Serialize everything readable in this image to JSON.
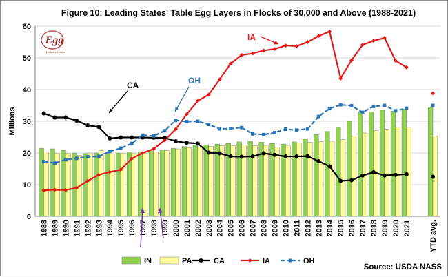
{
  "chart_data": {
    "type": "bar",
    "title": "Figure 10:  Leading States' Table Egg Layers in Flocks of 30,000 and Above (1988-2021)",
    "ylabel": "Millions",
    "xlabel": "",
    "ylim": [
      0,
      60
    ],
    "yticks": [
      0,
      10,
      20,
      30,
      40,
      50,
      60
    ],
    "grid": true,
    "legend_position": "bottom",
    "source": "Source:  USDA NASS",
    "logo_text": "Egg Industry Center",
    "categories": [
      "1988",
      "1989",
      "1990",
      "1991",
      "1992",
      "1993",
      "1994",
      "1995",
      "1996",
      "1997",
      "1998",
      "1999",
      "2000",
      "2001",
      "2002",
      "2003",
      "2004",
      "2005",
      "2006",
      "2007",
      "2008",
      "2009",
      "2010",
      "2011",
      "2012",
      "2013",
      "2014",
      "2015",
      "2016",
      "2017",
      "2018",
      "2019",
      "2020",
      "2021",
      "YTD avg."
    ],
    "series": [
      {
        "name": "IN",
        "kind": "bar",
        "color": "#92d050",
        "values": [
          21.5,
          21.3,
          20.8,
          20.0,
          19.8,
          20.0,
          20.0,
          20.0,
          20.3,
          20.4,
          20.7,
          21.0,
          21.5,
          22.0,
          22.4,
          22.6,
          22.8,
          23.0,
          23.5,
          23.8,
          23.4,
          23.0,
          22.8,
          23.5,
          24.5,
          25.8,
          26.8,
          28.2,
          30.0,
          32.7,
          33.0,
          33.5,
          33.2,
          33.8,
          34.5
        ]
      },
      {
        "name": "PA",
        "kind": "bar",
        "color": "#ffff99",
        "values": [
          20.3,
          19.8,
          19.8,
          19.3,
          20.0,
          20.8,
          19.7,
          19.8,
          19.8,
          20.0,
          20.3,
          20.7,
          21.3,
          21.7,
          21.9,
          22.1,
          22.3,
          22.3,
          22.5,
          22.3,
          22.4,
          21.8,
          22.4,
          23.2,
          23.4,
          23.6,
          23.7,
          24.2,
          25.4,
          26.3,
          27.0,
          27.5,
          28.1,
          28.1,
          25.3
        ]
      },
      {
        "name": "CA",
        "kind": "line",
        "color": "#000000",
        "values": [
          32.5,
          31.2,
          31.2,
          30.2,
          28.7,
          28.2,
          24.6,
          24.9,
          24.9,
          24.9,
          24.8,
          24.8,
          23.7,
          23.2,
          23.0,
          20.1,
          19.9,
          18.9,
          18.8,
          18.9,
          19.9,
          19.4,
          18.9,
          18.9,
          19.0,
          17.4,
          15.8,
          11.2,
          11.4,
          12.9,
          13.9,
          12.9,
          13.1,
          13.3,
          12.5
        ]
      },
      {
        "name": "IA",
        "kind": "line",
        "color": "#e31a1c",
        "values": [
          8.2,
          8.4,
          8.3,
          9.0,
          11.2,
          13.1,
          14.0,
          14.7,
          18.2,
          20.0,
          21.3,
          24.0,
          27.5,
          32.2,
          36.4,
          38.4,
          43.2,
          48.2,
          50.9,
          51.4,
          52.3,
          52.8,
          53.9,
          53.7,
          55.0,
          56.9,
          58.3,
          43.5,
          49.3,
          54.1,
          55.4,
          56.3,
          49.1,
          47.0,
          38.8
        ]
      },
      {
        "name": "OH",
        "kind": "line",
        "color": "#2e75b6",
        "values": [
          17.3,
          16.8,
          17.9,
          18.3,
          18.8,
          18.9,
          20.5,
          21.5,
          23.0,
          25.6,
          25.4,
          27.0,
          30.3,
          29.9,
          30.0,
          29.0,
          27.6,
          27.7,
          28.0,
          26.0,
          25.8,
          26.4,
          27.5,
          27.2,
          27.6,
          31.5,
          34.0,
          35.2,
          34.9,
          32.8,
          34.7,
          35.0,
          33.3,
          34.1,
          35.0
        ]
      }
    ],
    "annotations": [
      {
        "text": "IA",
        "color": "#e31a1c"
      },
      {
        "text": "OH",
        "color": "#2e75b6"
      },
      {
        "text": "CA",
        "color": "#000000"
      }
    ]
  }
}
